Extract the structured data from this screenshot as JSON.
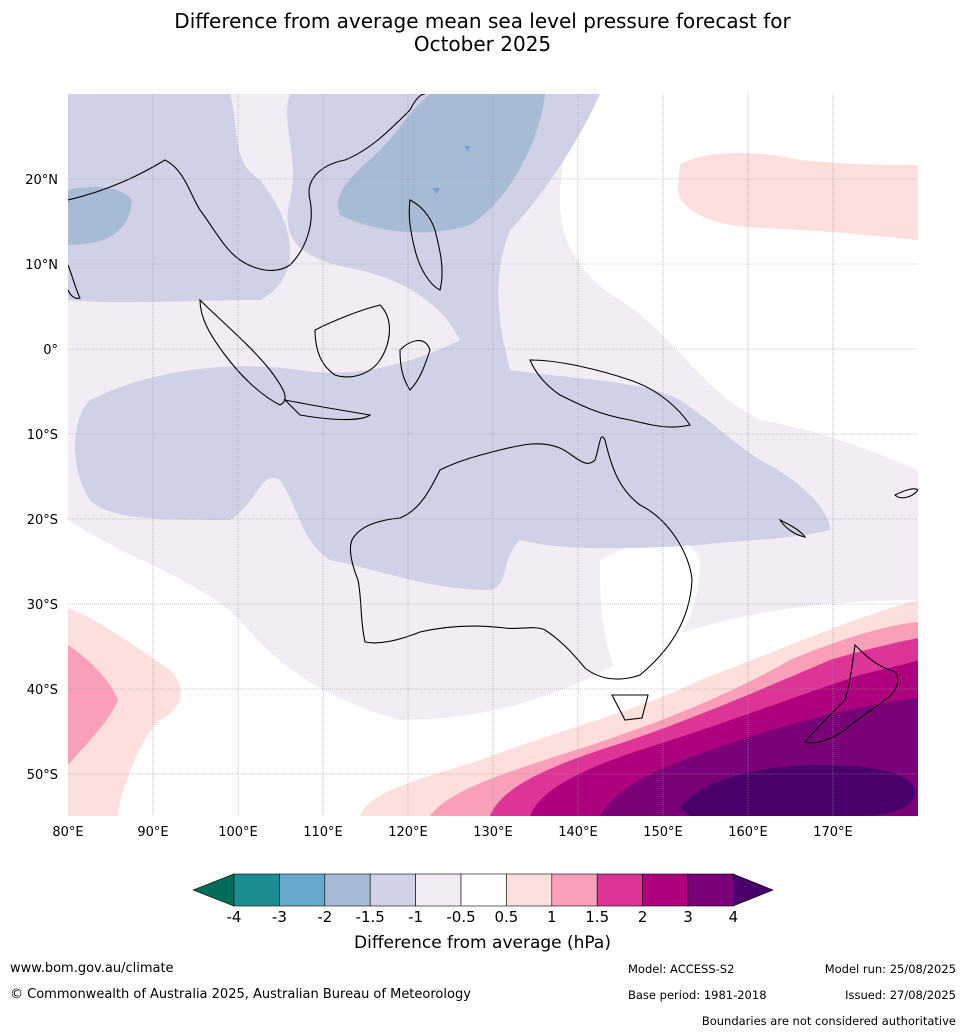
{
  "title_line1": "Difference from average mean sea level pressure forecast for",
  "title_line2": "October 2025",
  "map": {
    "lat_labels": [
      "20°N",
      "10°N",
      "0°",
      "10°S",
      "20°S",
      "30°S",
      "40°S",
      "50°S"
    ],
    "lon_labels": [
      "80°E",
      "90°E",
      "100°E",
      "110°E",
      "120°E",
      "130°E",
      "140°E",
      "150°E",
      "160°E",
      "170°E"
    ],
    "lon_range": [
      80,
      180
    ],
    "lat_range": [
      -55,
      30
    ]
  },
  "colorbar": {
    "label": "Difference from average (hPa)",
    "ticks": [
      "-4",
      "-3",
      "-2",
      "-1.5",
      "-1",
      "-0.5",
      "0.5",
      "1",
      "1.5",
      "2",
      "3",
      "4"
    ],
    "colors": [
      "#1b8e93",
      "#67a9cf",
      "#a7bbd6",
      "#d0d1e6",
      "#f2ecf5",
      "#ffffff",
      "#fddfde",
      "#f99fb9",
      "#dd3497",
      "#ae017e",
      "#7a0177"
    ],
    "extend_low_color": "#016c59",
    "extend_high_color": "#49006a"
  },
  "footer": {
    "website": "www.bom.gov.au/climate",
    "copyright": "© Commonwealth of Australia 2025, Australian Bureau of Meteorology",
    "model": "Model: ACCESS-S2",
    "base_period": "Base period: 1981-2018",
    "model_run": "Model run: 25/08/2025",
    "issued": "Issued: 27/08/2025",
    "disclaimer": "Boundaries are not considered authoritative"
  }
}
